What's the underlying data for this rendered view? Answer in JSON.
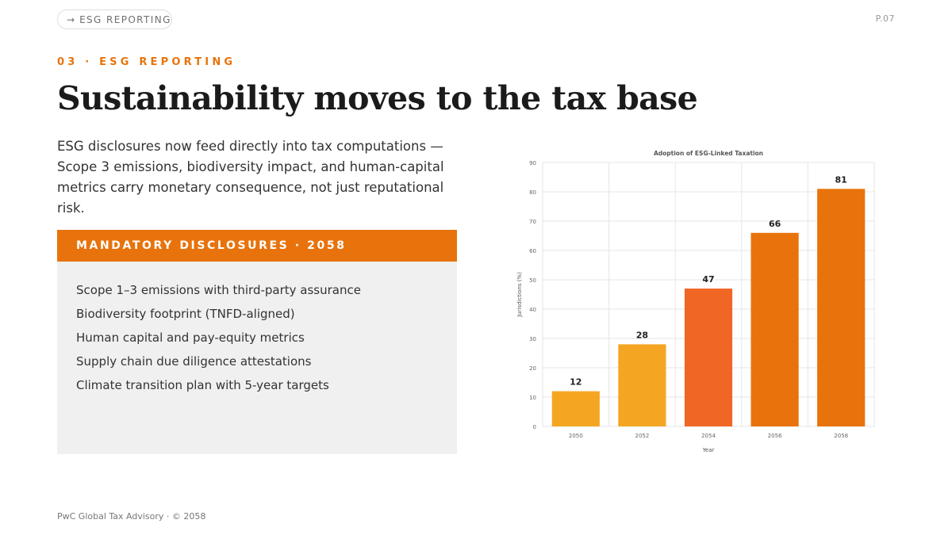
{
  "header": {
    "pill_arrow": "→",
    "pill_label": "ESG REPORTING",
    "page_number": "P.07"
  },
  "section": {
    "eyebrow": "03 · ESG REPORTING",
    "title": "Sustainability moves to the tax base",
    "lead": "ESG disclosures now feed directly into tax computations — Scope 3 emissions, biodiversity impact, and human-capital metrics carry monetary consequence, not just reputational risk."
  },
  "disclosures": {
    "heading": "MANDATORY DISCLOSURES · 2058",
    "items": [
      "Scope 1–3 emissions with third-party assurance",
      "Biodiversity footprint (TNFD-aligned)",
      "Human capital and pay-equity metrics",
      "Supply chain due diligence attestations",
      "Climate transition plan with 5-year targets"
    ]
  },
  "chart_data": {
    "type": "bar",
    "title": "Adoption of ESG-Linked Taxation",
    "xlabel": "Year",
    "ylabel": "Jurisdictions (%)",
    "categories": [
      "2050",
      "2052",
      "2054",
      "2056",
      "2058"
    ],
    "values": [
      12,
      28,
      47,
      66,
      81
    ],
    "ylim": [
      0,
      90
    ],
    "yticks": [
      0,
      10,
      20,
      30,
      40,
      50,
      60,
      70,
      80,
      90
    ],
    "bar_colors": [
      "#f4a622",
      "#f4a622",
      "#f06624",
      "#e8730c",
      "#e8730c"
    ],
    "grid": true,
    "data_labels": true
  },
  "footer": {
    "text": "PwC Global Tax Advisory · © 2058"
  },
  "colors": {
    "accent": "#e8730c",
    "panel_bg": "#f0f0f0"
  }
}
